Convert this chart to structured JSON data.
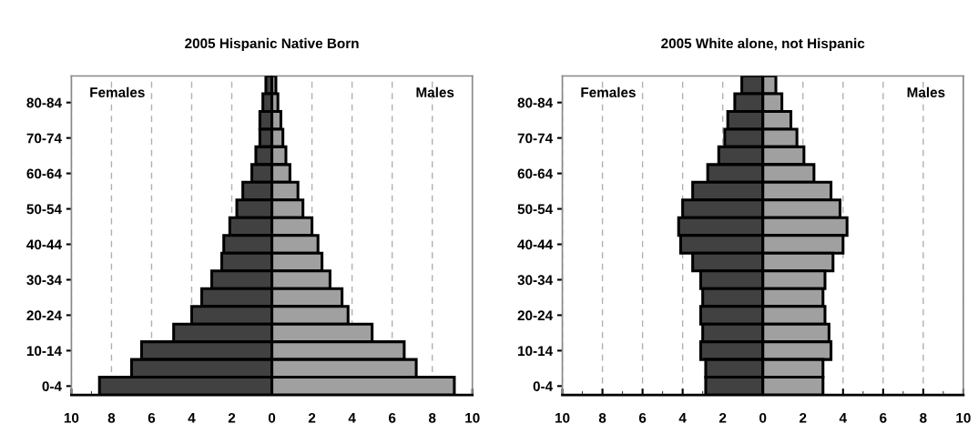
{
  "chart_data": [
    {
      "type": "bar",
      "orientation": "horizontal",
      "stacked": true,
      "title": "2005 Hispanic Native Born",
      "annotations": [
        "Females",
        "Males"
      ],
      "categories": [
        null,
        "80-84",
        null,
        "70-74",
        null,
        "60-64",
        null,
        "50-54",
        null,
        "40-44",
        null,
        "30-34",
        null,
        "20-24",
        null,
        "10-14",
        null,
        "0-4"
      ],
      "series": [
        {
          "color": "#414141",
          "values": [
            -0.3,
            -0.45,
            -0.6,
            -0.6,
            -0.8,
            -1.0,
            -1.45,
            -1.75,
            -2.1,
            -2.4,
            -2.5,
            -3.0,
            -3.5,
            -4.0,
            -4.9,
            -6.5,
            -7.0,
            -8.6
          ]
        },
        {
          "color": "#a0a0a0",
          "values": [
            0.2,
            0.3,
            0.45,
            0.55,
            0.7,
            0.9,
            1.3,
            1.55,
            2.0,
            2.3,
            2.5,
            2.9,
            3.5,
            3.8,
            5.0,
            6.6,
            7.2,
            9.1
          ]
        }
      ],
      "xlim": [
        -10,
        10
      ],
      "xticks": [
        {
          "value": -10,
          "label": "10"
        },
        {
          "value": -8,
          "label": "8"
        },
        {
          "value": -6,
          "label": "6"
        },
        {
          "value": -4,
          "label": "4"
        },
        {
          "value": -2,
          "label": "2"
        },
        0,
        2,
        4,
        6,
        8,
        10
      ],
      "grid": "x",
      "legend": false
    },
    {
      "type": "bar",
      "orientation": "horizontal",
      "stacked": true,
      "title": "2005 White alone, not Hispanic",
      "annotations": [
        "Females",
        "Males"
      ],
      "categories": [
        null,
        "80-84",
        null,
        "70-74",
        null,
        "60-64",
        null,
        "50-54",
        null,
        "40-44",
        null,
        "30-34",
        null,
        "20-24",
        null,
        "10-14",
        null,
        "0-4"
      ],
      "series": [
        {
          "color": "#414141",
          "values": [
            -1.05,
            -1.4,
            -1.75,
            -1.9,
            -2.2,
            -2.75,
            -3.5,
            -4.0,
            -4.2,
            -4.1,
            -3.5,
            -3.1,
            -3.0,
            -3.1,
            -3.0,
            -3.1,
            -2.85,
            -2.85
          ]
        },
        {
          "color": "#a0a0a0",
          "values": [
            0.65,
            0.95,
            1.4,
            1.7,
            2.05,
            2.55,
            3.4,
            3.85,
            4.2,
            4.0,
            3.5,
            3.1,
            3.0,
            3.1,
            3.3,
            3.4,
            3.0,
            3.0
          ]
        }
      ],
      "xlim": [
        -10,
        10
      ],
      "xticks": [
        {
          "value": -10,
          "label": "10"
        },
        {
          "value": -8,
          "label": "8"
        },
        {
          "value": -6,
          "label": "6"
        },
        {
          "value": -4,
          "label": "4"
        },
        {
          "value": -2,
          "label": "2"
        },
        0,
        2,
        4,
        6,
        8,
        10
      ],
      "grid": "x",
      "legend": false
    }
  ]
}
